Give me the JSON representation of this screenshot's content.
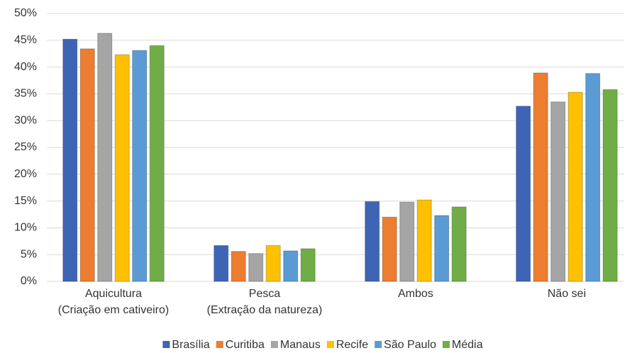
{
  "chart_data": {
    "type": "bar",
    "categories": [
      "Aquicultura\n(Criação em cativeiro)",
      "Pesca\n(Extração da natureza)",
      "Ambos",
      "Não sei"
    ],
    "series": [
      {
        "name": "Brasília",
        "color": "#3e64b5",
        "values": [
          45.2,
          6.7,
          14.9,
          32.7
        ]
      },
      {
        "name": "Curitiba",
        "color": "#ed7d31",
        "values": [
          43.4,
          5.6,
          12.0,
          38.9
        ]
      },
      {
        "name": "Manaus",
        "color": "#a5a5a5",
        "values": [
          46.3,
          5.2,
          14.8,
          33.5
        ]
      },
      {
        "name": "Recife",
        "color": "#ffc000",
        "values": [
          42.3,
          6.7,
          15.2,
          35.3
        ]
      },
      {
        "name": "São Paulo",
        "color": "#5b9bd5",
        "values": [
          43.1,
          5.7,
          12.3,
          38.8
        ]
      },
      {
        "name": "Média",
        "color": "#70ad47",
        "values": [
          44.0,
          6.1,
          13.9,
          35.8
        ]
      }
    ],
    "ylim": [
      0,
      50
    ],
    "yticks": [
      {
        "value": 0,
        "label": "0%"
      },
      {
        "value": 5,
        "label": "5%"
      },
      {
        "value": 10,
        "label": "10%"
      },
      {
        "value": 15,
        "label": "15%"
      },
      {
        "value": 20,
        "label": "20%"
      },
      {
        "value": 25,
        "label": "25%"
      },
      {
        "value": 30,
        "label": "30%"
      },
      {
        "value": 35,
        "label": "35%"
      },
      {
        "value": 40,
        "label": "40%"
      },
      {
        "value": 45,
        "label": "45%"
      },
      {
        "value": 50,
        "label": "50%"
      }
    ],
    "grid": true,
    "legend": "bottom"
  }
}
